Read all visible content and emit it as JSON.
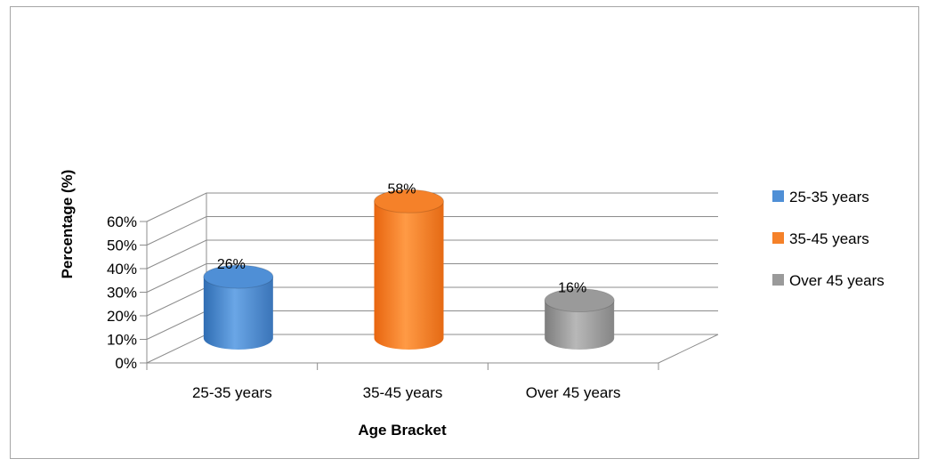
{
  "chart_data": {
    "type": "bar",
    "style": "3d-cylinder",
    "categories": [
      "25-35 years",
      "35-45 years",
      "Over 45 years"
    ],
    "values": [
      26,
      58,
      16
    ],
    "value_labels": [
      "26%",
      "58%",
      "16%"
    ],
    "series_colors": [
      "#4f8fd6",
      "#f58129",
      "#9a9a9a"
    ],
    "xlabel": "Age Bracket",
    "ylabel": "Percentage (%)",
    "ylim": [
      0,
      60
    ],
    "yticks": [
      "0%",
      "10%",
      "20%",
      "30%",
      "40%",
      "50%",
      "60%"
    ],
    "grid": true,
    "legend": {
      "position": "right",
      "entries": [
        "25-35 years",
        "35-45 years",
        "Over 45 years"
      ]
    }
  }
}
